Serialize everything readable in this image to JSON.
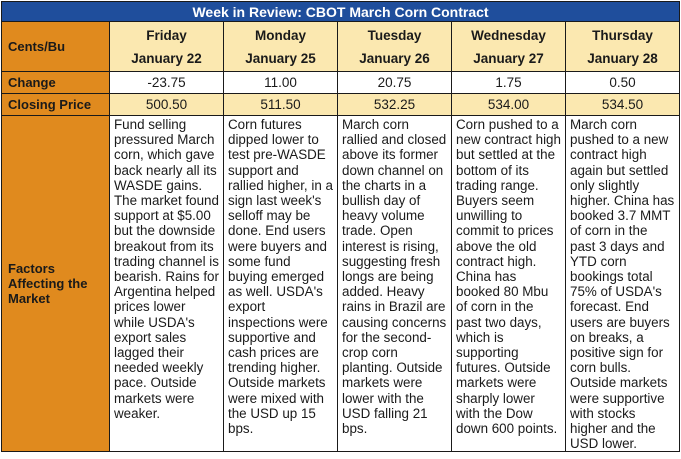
{
  "title": "Week in Review: CBOT March Corn Contract",
  "row_labels": {
    "units": "Cents/Bu",
    "change": "Change",
    "closing": "Closing Price",
    "factors": "Factors Affecting the Market"
  },
  "days": [
    {
      "day": "Friday",
      "date": "January 22",
      "change": "-23.75",
      "closing": "500.50",
      "factors": "Fund selling pressured March corn, which gave back nearly all its WASDE gains. The market found support at $5.00 but the downside breakout from its trading channel is bearish. Rains for Argentina helped prices lower while USDA's export sales lagged their needed weekly pace. Outside markets were weaker."
    },
    {
      "day": "Monday",
      "date": "January 25",
      "change": "11.00",
      "closing": "511.50",
      "factors": "Corn futures dipped lower to test pre-WASDE support and rallied higher, in a sign last week's selloff may be done. End users were buyers and some fund buying emerged as well. USDA's export inspections were supportive and cash prices are trending higher. Outside markets were mixed with the USD up 15 bps."
    },
    {
      "day": "Tuesday",
      "date": "January 26",
      "change": "20.75",
      "closing": "532.25",
      "factors": "March corn rallied and closed above its former down channel on the charts in a bullish day of heavy volume trade. Open interest is rising, suggesting fresh longs are being added. Heavy rains in Brazil are causing concerns for the second-crop corn planting. Outside markets were lower with the USD falling 21 bps."
    },
    {
      "day": "Wednesday",
      "date": "January 27",
      "change": "1.75",
      "closing": "534.00",
      "factors": "Corn pushed to a new contract high but settled at the bottom of its trading range. Buyers seem unwilling to commit to prices above the old contract high. China has booked 80 Mbu of corn in the past two days, which is supporting futures. Outside markets were sharply lower with the Dow down 600 points."
    },
    {
      "day": "Thursday",
      "date": "January 28",
      "change": "0.50",
      "closing": "534.50",
      "factors": "March corn pushed to a new contract high again but settled only slightly higher. China has booked 3.7 MMT of corn in the past 3 days and YTD corn bookings total 75% of USDA's forecast. End users are buyers on breaks, a positive sign for corn bulls. Outside markets were supportive with stocks higher and the USD lower."
    }
  ],
  "colors": {
    "title_bg": "#1f4e9c",
    "label_bg": "#e08a1e",
    "cell_bg": "#fbe8b0"
  }
}
